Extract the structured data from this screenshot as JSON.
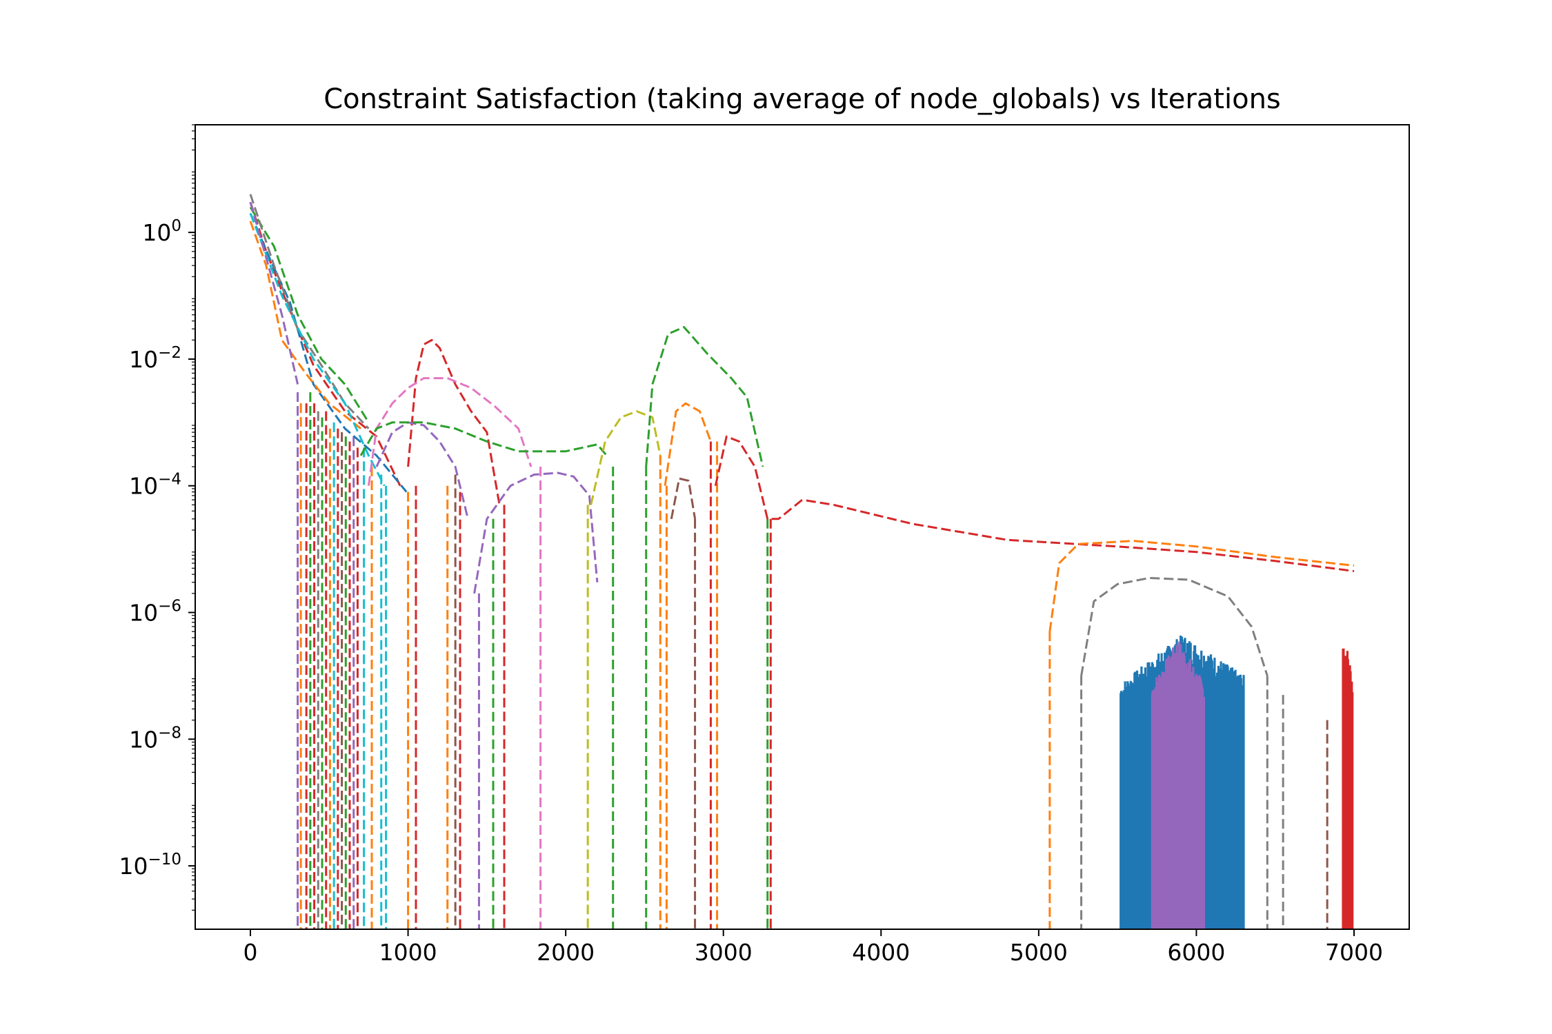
{
  "chart_data": {
    "type": "line",
    "title": "Constraint Satisfaction (taking average of node_globals) vs Iterations",
    "xlabel": "",
    "ylabel": "",
    "xlim": [
      -350,
      7350
    ],
    "ylim": [
      1e-11,
      50
    ],
    "yscale": "log",
    "grid": false,
    "legend": "none",
    "x_ticks": [
      0,
      1000,
      2000,
      3000,
      4000,
      5000,
      6000,
      7000
    ],
    "x_tick_labels": [
      "0",
      "1000",
      "2000",
      "3000",
      "4000",
      "5000",
      "6000",
      "7000"
    ],
    "y_ticks": [
      {
        "value": 1,
        "base": "10",
        "exp": "0"
      },
      {
        "value": 0.01,
        "base": "10",
        "exp": "−2"
      },
      {
        "value": 0.0001,
        "base": "10",
        "exp": "−4"
      },
      {
        "value": 1e-06,
        "base": "10",
        "exp": "−6"
      },
      {
        "value": 1e-08,
        "base": "10",
        "exp": "−8"
      },
      {
        "value": 1e-10,
        "base": "10",
        "exp": "−10"
      }
    ],
    "series": [
      {
        "color": "#d62728",
        "dashed": true,
        "points": [
          [
            0,
            3
          ],
          [
            100,
            0.5
          ],
          [
            200,
            0.12
          ],
          [
            300,
            0.03
          ],
          [
            400,
            0.008
          ],
          [
            600,
            0.0015
          ],
          [
            800,
            0.0006
          ],
          [
            950,
            0.0001
          ]
        ]
      },
      {
        "color": "#1f77b4",
        "dashed": true,
        "points": [
          [
            0,
            2
          ],
          [
            120,
            0.4
          ],
          [
            250,
            0.08
          ],
          [
            400,
            0.004
          ],
          [
            600,
            0.0008
          ],
          [
            800,
            0.0003
          ],
          [
            990,
            8e-05
          ]
        ]
      },
      {
        "color": "#ff7f0e",
        "dashed": true,
        "points": [
          [
            0,
            1.5
          ],
          [
            100,
            0.3
          ],
          [
            200,
            0.02
          ],
          [
            350,
            0.006
          ],
          [
            500,
            0.002
          ],
          [
            700,
            0.0008
          ]
        ]
      },
      {
        "color": "#2ca02c",
        "dashed": true,
        "points": [
          [
            0,
            2.5
          ],
          [
            150,
            0.6
          ],
          [
            300,
            0.05
          ],
          [
            450,
            0.01
          ],
          [
            600,
            0.004
          ],
          [
            750,
            0.001
          ]
        ]
      },
      {
        "color": "#7f7f7f",
        "dashed": true,
        "points": [
          [
            0,
            4
          ],
          [
            150,
            0.3
          ],
          [
            300,
            0.03
          ],
          [
            450,
            0.008
          ],
          [
            600,
            0.002
          ],
          [
            750,
            0.0008
          ]
        ]
      },
      {
        "color": "#17becf",
        "dashed": true,
        "points": [
          [
            0,
            2
          ],
          [
            200,
            0.1
          ],
          [
            400,
            0.01
          ],
          [
            600,
            0.002
          ],
          [
            750,
            0.0003
          ],
          [
            850,
            0.0001
          ]
        ]
      },
      {
        "color": "#9467bd",
        "dashed": true,
        "points": [
          [
            0,
            3
          ],
          [
            100,
            0.4
          ],
          [
            200,
            0.05
          ],
          [
            300,
            0.004
          ]
        ]
      },
      {
        "color": "#d62728",
        "dashed": true,
        "points": [
          [
            1000,
            0.0002
          ],
          [
            1050,
            0.005
          ],
          [
            1100,
            0.017
          ],
          [
            1150,
            0.02
          ],
          [
            1200,
            0.015
          ],
          [
            1300,
            0.004
          ],
          [
            1400,
            0.0015
          ],
          [
            1500,
            0.0007
          ],
          [
            1580,
            5e-05
          ]
        ]
      },
      {
        "color": "#e377c2",
        "dashed": true,
        "points": [
          [
            750,
            0.0001
          ],
          [
            800,
            0.0008
          ],
          [
            900,
            0.002
          ],
          [
            1000,
            0.0035
          ],
          [
            1100,
            0.005
          ],
          [
            1250,
            0.005
          ],
          [
            1400,
            0.0035
          ],
          [
            1550,
            0.0018
          ],
          [
            1700,
            0.0008
          ],
          [
            1780,
            0.0002
          ]
        ]
      },
      {
        "color": "#9467bd",
        "dashed": true,
        "points": [
          [
            800,
            0.0002
          ],
          [
            900,
            0.0007
          ],
          [
            1000,
            0.001
          ],
          [
            1100,
            0.0009
          ],
          [
            1200,
            0.0005
          ],
          [
            1300,
            0.0002
          ],
          [
            1380,
            3e-05
          ]
        ]
      },
      {
        "color": "#2ca02c",
        "dashed": true,
        "points": [
          [
            700,
            0.0003
          ],
          [
            800,
            0.0008
          ],
          [
            900,
            0.001
          ],
          [
            1100,
            0.001
          ],
          [
            1300,
            0.0008
          ],
          [
            1500,
            0.0005
          ],
          [
            1700,
            0.00035
          ],
          [
            2000,
            0.00035
          ],
          [
            2200,
            0.00045
          ],
          [
            2260,
            0.0003
          ]
        ]
      },
      {
        "color": "#9467bd",
        "dashed": true,
        "points": [
          [
            1420,
            2e-06
          ],
          [
            1500,
            3e-05
          ],
          [
            1650,
            0.0001
          ],
          [
            1800,
            0.00015
          ],
          [
            1950,
            0.00016
          ],
          [
            2050,
            0.00014
          ],
          [
            2150,
            7e-05
          ],
          [
            2200,
            3e-06
          ]
        ]
      },
      {
        "color": "#bcbd22",
        "dashed": true,
        "points": [
          [
            2160,
            5e-05
          ],
          [
            2250,
            0.0005
          ],
          [
            2350,
            0.0012
          ],
          [
            2450,
            0.0015
          ],
          [
            2550,
            0.0012
          ],
          [
            2600,
            0.0003
          ]
        ]
      },
      {
        "color": "#2ca02c",
        "dashed": true,
        "points": [
          [
            2510,
            0.0002
          ],
          [
            2550,
            0.004
          ],
          [
            2650,
            0.025
          ],
          [
            2750,
            0.032
          ],
          [
            2900,
            0.012
          ],
          [
            3050,
            0.005
          ],
          [
            3150,
            0.0025
          ],
          [
            3250,
            0.0002
          ]
        ]
      },
      {
        "color": "#ff7f0e",
        "dashed": true,
        "points": [
          [
            2630,
            0.0001
          ],
          [
            2700,
            0.0015
          ],
          [
            2760,
            0.002
          ],
          [
            2850,
            0.0015
          ],
          [
            2920,
            0.0005
          ]
        ]
      },
      {
        "color": "#8c564b",
        "dashed": true,
        "points": [
          [
            2670,
            3e-05
          ],
          [
            2720,
            0.00013
          ],
          [
            2780,
            0.00012
          ],
          [
            2820,
            3e-05
          ]
        ]
      },
      {
        "color": "#d62728",
        "dashed": true,
        "points": [
          [
            2950,
            0.0001
          ],
          [
            3020,
            0.0006
          ],
          [
            3100,
            0.0005
          ],
          [
            3200,
            0.0002
          ],
          [
            3280,
            3e-05
          ],
          [
            3350,
            3e-05
          ],
          [
            3500,
            6e-05
          ],
          [
            3700,
            5e-05
          ],
          [
            4200,
            2.5e-05
          ],
          [
            4800,
            1.4e-05
          ],
          [
            5500,
            1.1e-05
          ],
          [
            6000,
            9e-06
          ],
          [
            6500,
            6.5e-06
          ],
          [
            7000,
            4.5e-06
          ]
        ]
      },
      {
        "color": "#ff7f0e",
        "dashed": true,
        "points": [
          [
            5070,
            5e-07
          ],
          [
            5130,
            6e-06
          ],
          [
            5250,
            1.2e-05
          ],
          [
            5600,
            1.35e-05
          ],
          [
            6000,
            1.1e-05
          ],
          [
            6500,
            7.5e-06
          ],
          [
            7000,
            5.5e-06
          ]
        ]
      },
      {
        "color": "#7f7f7f",
        "dashed": true,
        "points": [
          [
            5270,
            1e-07
          ],
          [
            5350,
            1.5e-06
          ],
          [
            5500,
            2.8e-06
          ],
          [
            5700,
            3.5e-06
          ],
          [
            5950,
            3.3e-06
          ],
          [
            6200,
            1.8e-06
          ],
          [
            6350,
            6e-07
          ],
          [
            6450,
            1e-07
          ]
        ]
      }
    ],
    "drops": [
      {
        "x": 300,
        "from": 0.003,
        "color": "#9467bd"
      },
      {
        "x": 320,
        "from": 0.002,
        "color": "#ff7f0e"
      },
      {
        "x": 355,
        "from": 0.002,
        "color": "#d62728"
      },
      {
        "x": 380,
        "from": 0.003,
        "color": "#2ca02c"
      },
      {
        "x": 405,
        "from": 0.002,
        "color": "#d62728"
      },
      {
        "x": 430,
        "from": 0.0015,
        "color": "#7f7f7f"
      },
      {
        "x": 455,
        "from": 0.0012,
        "color": "#2ca02c"
      },
      {
        "x": 480,
        "from": 0.0015,
        "color": "#d62728"
      },
      {
        "x": 505,
        "from": 0.0008,
        "color": "#ff7f0e"
      },
      {
        "x": 530,
        "from": 0.001,
        "color": "#17becf"
      },
      {
        "x": 555,
        "from": 0.0008,
        "color": "#d62728"
      },
      {
        "x": 580,
        "from": 0.0007,
        "color": "#8c564b"
      },
      {
        "x": 605,
        "from": 0.0006,
        "color": "#2ca02c"
      },
      {
        "x": 630,
        "from": 0.0005,
        "color": "#d62728"
      },
      {
        "x": 655,
        "from": 0.0006,
        "color": "#9467bd"
      },
      {
        "x": 680,
        "from": 0.0004,
        "color": "#d62728"
      },
      {
        "x": 720,
        "from": 0.0004,
        "color": "#17becf"
      },
      {
        "x": 770,
        "from": 0.0002,
        "color": "#ff7f0e"
      },
      {
        "x": 830,
        "from": 0.00015,
        "color": "#17becf"
      },
      {
        "x": 860,
        "from": 0.0001,
        "color": "#17becf"
      },
      {
        "x": 1000,
        "from": 8e-05,
        "color": "#ff7f0e"
      },
      {
        "x": 1050,
        "from": 0.0001,
        "color": "#d62728"
      },
      {
        "x": 1250,
        "from": 0.0001,
        "color": "#ff7f0e"
      },
      {
        "x": 1300,
        "from": 0.00015,
        "color": "#8c564b"
      },
      {
        "x": 1330,
        "from": 8e-05,
        "color": "#d62728"
      },
      {
        "x": 1450,
        "from": 2e-06,
        "color": "#9467bd"
      },
      {
        "x": 1540,
        "from": 3e-05,
        "color": "#2ca02c"
      },
      {
        "x": 1610,
        "from": 5e-05,
        "color": "#d62728"
      },
      {
        "x": 1840,
        "from": 0.0002,
        "color": "#e377c2"
      },
      {
        "x": 2140,
        "from": 5e-05,
        "color": "#bcbd22"
      },
      {
        "x": 2300,
        "from": 0.0002,
        "color": "#2ca02c"
      },
      {
        "x": 2510,
        "from": 0.0002,
        "color": "#2ca02c"
      },
      {
        "x": 2600,
        "from": 0.0003,
        "color": "#ff7f0e"
      },
      {
        "x": 2640,
        "from": 0.0001,
        "color": "#ff7f0e"
      },
      {
        "x": 2820,
        "from": 3e-05,
        "color": "#8c564b"
      },
      {
        "x": 2920,
        "from": 0.0005,
        "color": "#d62728"
      },
      {
        "x": 2960,
        "from": 0.0005,
        "color": "#ff7f0e"
      },
      {
        "x": 3280,
        "from": 3e-05,
        "color": "#2ca02c"
      },
      {
        "x": 3300,
        "from": 3e-05,
        "color": "#d62728"
      },
      {
        "x": 5070,
        "from": 5e-07,
        "color": "#ff7f0e"
      },
      {
        "x": 5270,
        "from": 1e-07,
        "color": "#7f7f7f"
      },
      {
        "x": 6450,
        "from": 1e-07,
        "color": "#7f7f7f"
      },
      {
        "x": 6550,
        "from": 5e-08,
        "color": "#7f7f7f"
      },
      {
        "x": 6830,
        "from": 2e-08,
        "color": "#8c564b"
      }
    ],
    "noise_bands": [
      {
        "color": "#1f77b4",
        "x0": 5520,
        "x1": 6300,
        "top_start": 6e-08,
        "top_mid": 3.5e-07,
        "top_end": 8e-08
      },
      {
        "color": "#9467bd",
        "x0": 5720,
        "x1": 6050,
        "top_start": 6e-08,
        "top_mid": 3e-07,
        "top_end": 6e-08
      },
      {
        "color": "#d62728",
        "x0": 6930,
        "x1": 6990,
        "top_start": 3e-07,
        "top_mid": 2e-07,
        "top_end": 8e-08
      }
    ]
  }
}
